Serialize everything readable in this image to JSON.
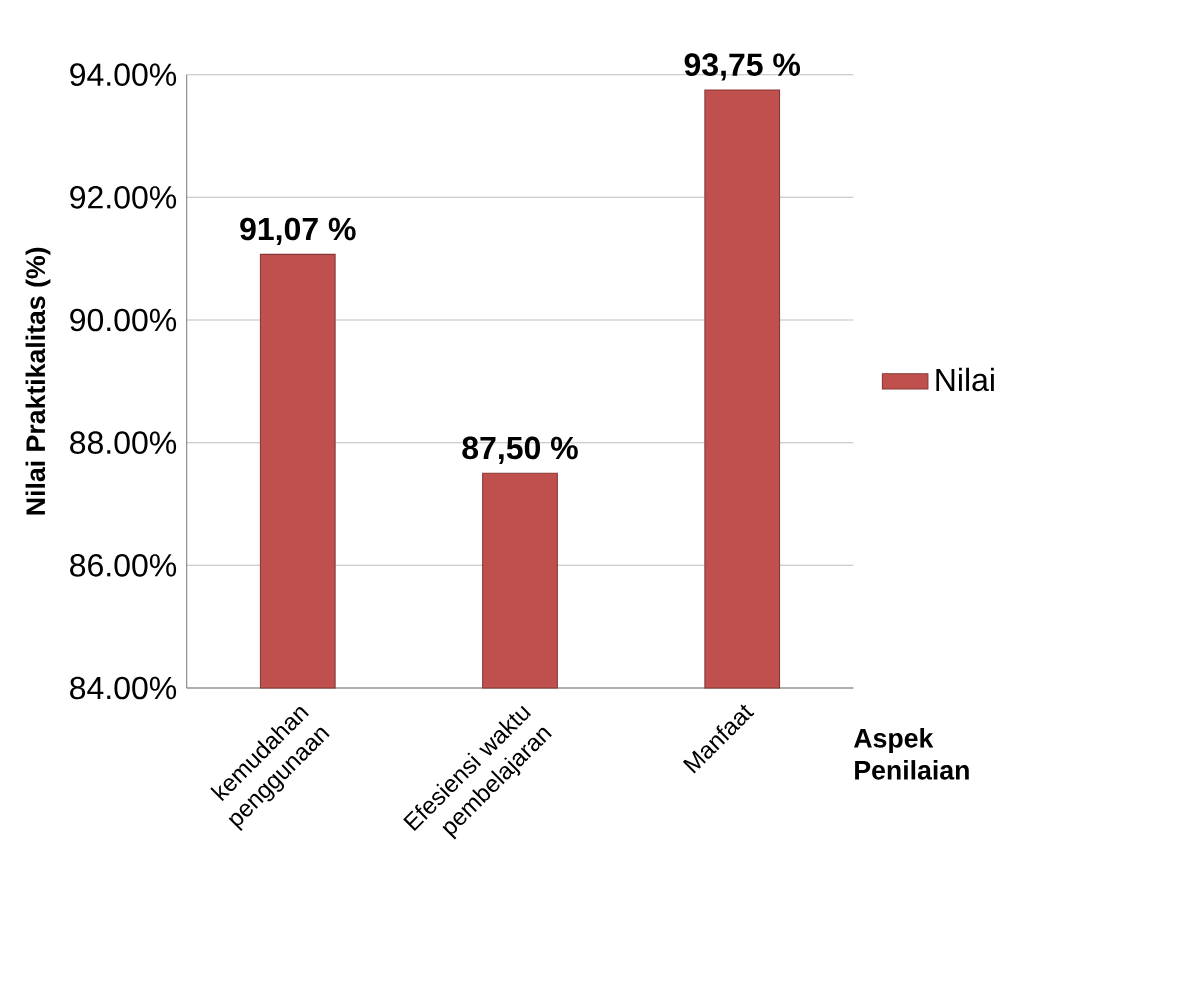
{
  "chart_data": {
    "type": "bar",
    "xlabel": "Aspek Penilaian",
    "ylabel": "Nilai Praktikalitas (%)",
    "categories": [
      "kemudahan penggunaan",
      "Efesiensi waktu pembelajaran",
      "Manfaat"
    ],
    "series": [
      {
        "name": "Nilai",
        "color": "#c0504d",
        "values": [
          91.07,
          87.5,
          93.75
        ],
        "value_labels": [
          "91,07 %",
          "87,50 %",
          "93,75 %"
        ]
      }
    ],
    "ylim": [
      84,
      94
    ],
    "yticks": [
      {
        "value": 84,
        "label": "84.00%"
      },
      {
        "value": 86,
        "label": "86.00%"
      },
      {
        "value": 88,
        "label": "88.00%"
      },
      {
        "value": 90,
        "label": "90.00%"
      },
      {
        "value": 92,
        "label": "92.00%"
      },
      {
        "value": 94,
        "label": "94.00%"
      }
    ],
    "grid": "y",
    "legend": "right"
  }
}
